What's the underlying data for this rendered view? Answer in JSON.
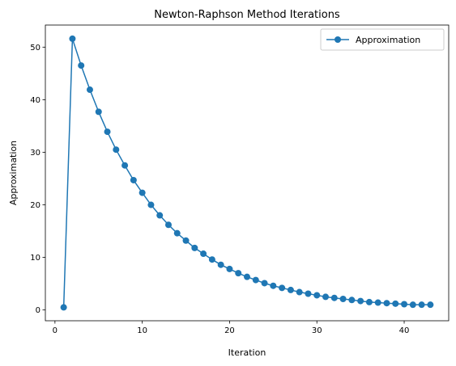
{
  "chart_data": {
    "type": "line",
    "title": "Newton-Raphson Method Iterations",
    "xlabel": "Iteration",
    "ylabel": "Approximation",
    "xlim": [
      -1.1,
      45.1
    ],
    "ylim": [
      -2.05,
      54.2
    ],
    "xticks": [
      0,
      10,
      20,
      30,
      40
    ],
    "yticks": [
      0,
      10,
      20,
      30,
      40,
      50
    ],
    "grid": false,
    "legend_position": "top-right",
    "series": [
      {
        "name": "Approximation",
        "color": "#1f77b4",
        "marker": "circle",
        "x": [
          1,
          2,
          3,
          4,
          5,
          6,
          7,
          8,
          9,
          10,
          11,
          12,
          13,
          14,
          15,
          16,
          17,
          18,
          19,
          20,
          21,
          22,
          23,
          24,
          25,
          26,
          27,
          28,
          29,
          30,
          31,
          32,
          33,
          34,
          35,
          36,
          37,
          38,
          39,
          40,
          41,
          42,
          43
        ],
        "y": [
          0.5,
          51.6,
          46.5,
          41.9,
          37.7,
          33.9,
          30.5,
          27.5,
          24.7,
          22.3,
          20.0,
          18.0,
          16.2,
          14.6,
          13.2,
          11.8,
          10.7,
          9.6,
          8.6,
          7.8,
          7.0,
          6.3,
          5.7,
          5.1,
          4.6,
          4.2,
          3.8,
          3.4,
          3.1,
          2.8,
          2.5,
          2.3,
          2.1,
          1.9,
          1.7,
          1.5,
          1.4,
          1.3,
          1.2,
          1.1,
          1.0,
          1.0,
          1.0
        ]
      }
    ]
  }
}
